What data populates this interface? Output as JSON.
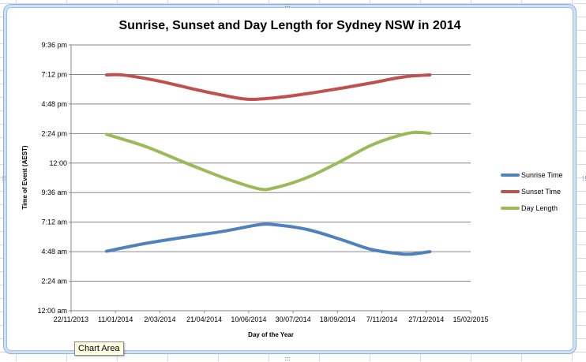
{
  "chart_data": {
    "type": "line",
    "title": "Sunrise, Sunset and Day Length for Sydney NSW in 2014",
    "xlabel": "Day of the Year",
    "ylabel": "Time of Event (AEST)",
    "x_ticks": [
      "22/11/2013",
      "11/01/2014",
      "2/03/2014",
      "21/04/2014",
      "10/06/2014",
      "30/07/2014",
      "18/09/2014",
      "7/11/2014",
      "27/12/2014",
      "15/02/2015"
    ],
    "y_ticks": [
      "12:00 am",
      "2:24 am",
      "4:48 am",
      "7:12 am",
      "9:36 am",
      "12:00",
      "2:24 pm",
      "4:48 pm",
      "7:12 pm",
      "9:36 pm"
    ],
    "xlim": [
      "2013-11-22",
      "2015-02-15"
    ],
    "ylim": [
      "00:00",
      "21:36"
    ],
    "grid": "horizontal",
    "legend_position": "right",
    "series": [
      {
        "name": "Sunrise Time",
        "color": "#4f81bd",
        "points": [
          [
            "2014-01-01",
            "04:50"
          ],
          [
            "2014-02-15",
            "05:29"
          ],
          [
            "2014-04-01",
            "06:00"
          ],
          [
            "2014-05-15",
            "06:29"
          ],
          [
            "2014-06-21",
            "06:59"
          ],
          [
            "2014-07-10",
            "06:59"
          ],
          [
            "2014-08-15",
            "06:36"
          ],
          [
            "2014-09-20",
            "05:50"
          ],
          [
            "2014-10-25",
            "05:00"
          ],
          [
            "2014-11-25",
            "04:39"
          ],
          [
            "2014-12-10",
            "04:36"
          ],
          [
            "2014-12-31",
            "04:48"
          ]
        ]
      },
      {
        "name": "Sunset Time",
        "color": "#c0504d",
        "points": [
          [
            "2014-01-01",
            "19:10"
          ],
          [
            "2014-01-20",
            "19:09"
          ],
          [
            "2014-03-01",
            "18:40"
          ],
          [
            "2014-04-15",
            "17:55"
          ],
          [
            "2014-06-01",
            "17:15"
          ],
          [
            "2014-06-25",
            "17:13"
          ],
          [
            "2014-08-01",
            "17:30"
          ],
          [
            "2014-09-15",
            "18:00"
          ],
          [
            "2014-10-25",
            "18:30"
          ],
          [
            "2014-12-01",
            "19:00"
          ],
          [
            "2014-12-31",
            "19:10"
          ]
        ]
      },
      {
        "name": "Day Length",
        "color": "#9bbb59",
        "points": [
          [
            "2014-01-01",
            "14:20"
          ],
          [
            "2014-02-15",
            "13:19"
          ],
          [
            "2014-04-01",
            "11:59"
          ],
          [
            "2014-05-15",
            "10:45"
          ],
          [
            "2014-06-21",
            "09:55"
          ],
          [
            "2014-07-10",
            "10:00"
          ],
          [
            "2014-08-15",
            "10:50"
          ],
          [
            "2014-09-20",
            "12:05"
          ],
          [
            "2014-10-25",
            "13:25"
          ],
          [
            "2014-11-25",
            "14:13"
          ],
          [
            "2014-12-15",
            "14:30"
          ],
          [
            "2014-12-31",
            "14:25"
          ]
        ]
      }
    ]
  },
  "ui": {
    "tooltip": "Chart Area"
  }
}
